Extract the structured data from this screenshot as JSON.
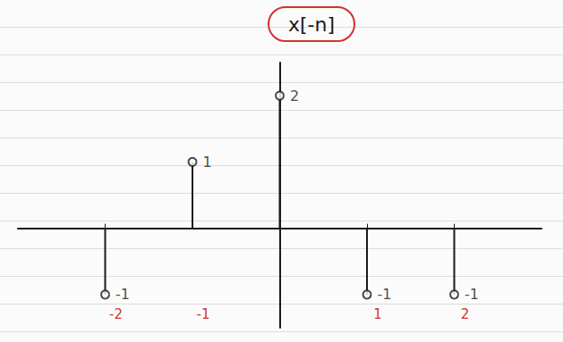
{
  "chart_data": {
    "type": "stem",
    "title": "x[-n]",
    "x": [
      -2,
      -1,
      0,
      1,
      2
    ],
    "values": [
      -1,
      1,
      2,
      -1,
      -1
    ],
    "xlim": [
      -3,
      3
    ],
    "xticks": [
      -2,
      -1,
      1,
      2
    ],
    "ylim": [
      -1.5,
      2.5
    ],
    "tick_labels": "x",
    "data_labels": true,
    "color": "#1a1a1a",
    "grid": false
  }
}
